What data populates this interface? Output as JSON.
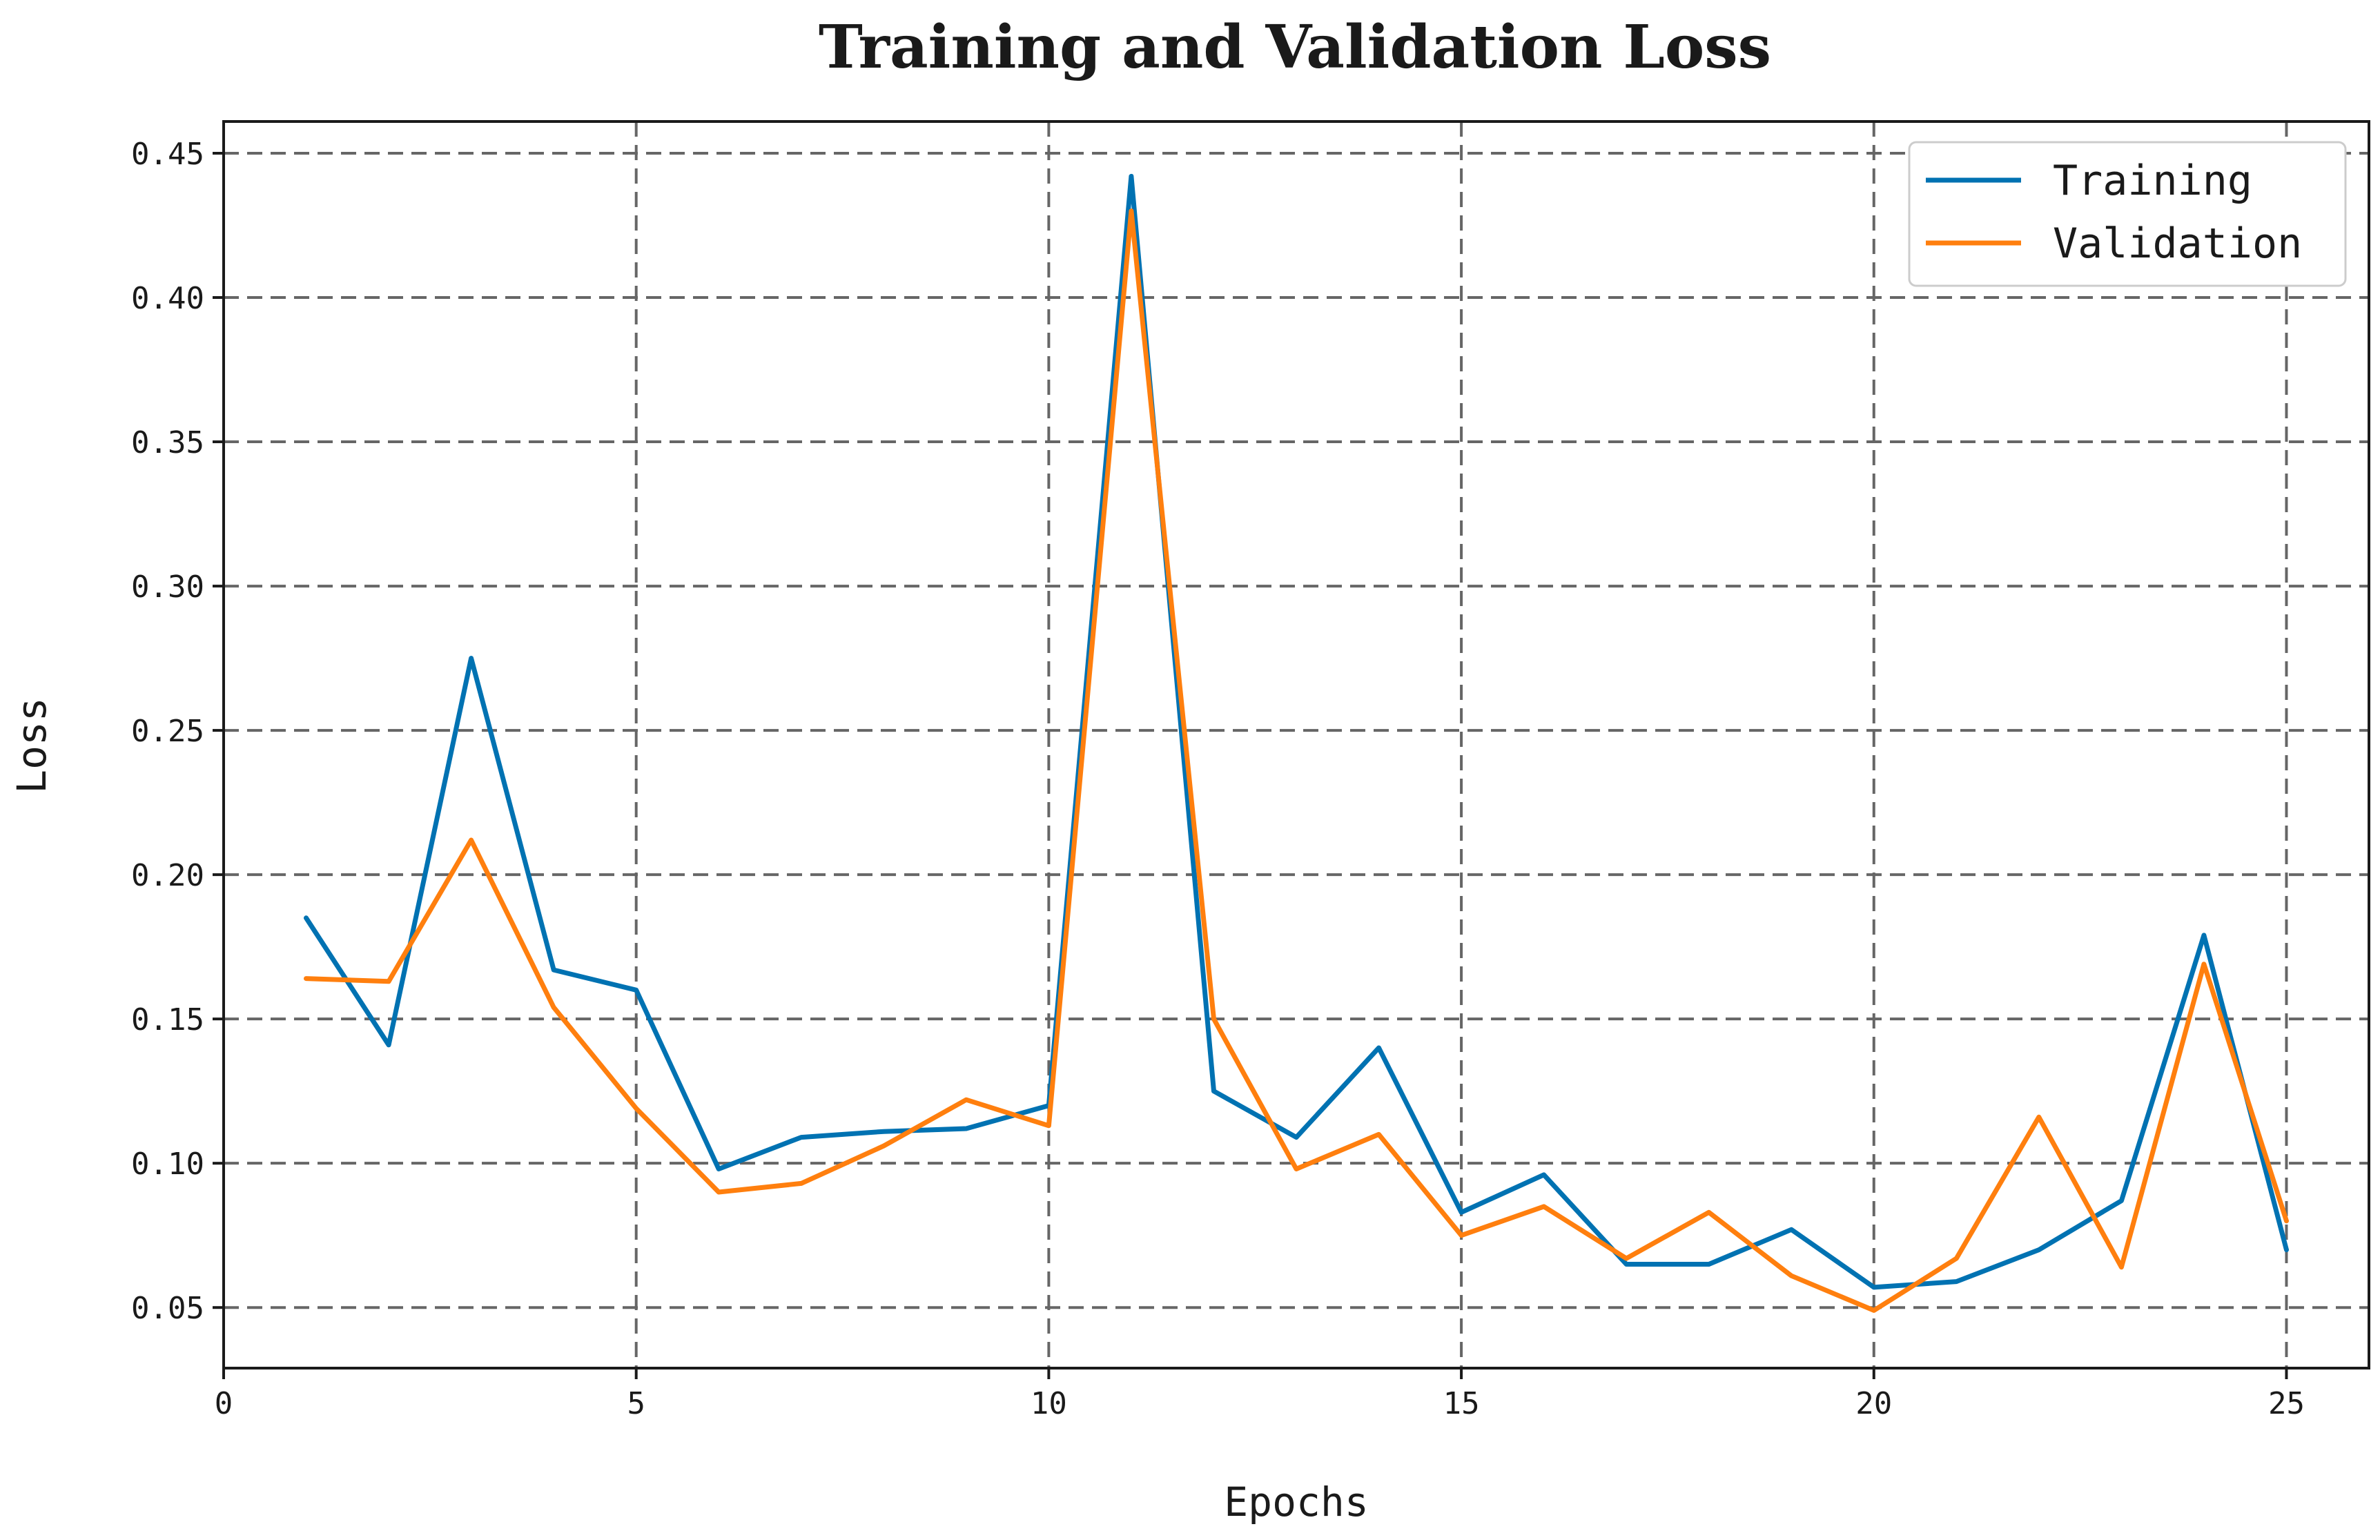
{
  "chart_data": {
    "type": "line",
    "title": "Training and Validation Loss",
    "xlabel": "Epochs",
    "ylabel": "Loss",
    "xlim": [
      0,
      26
    ],
    "ylim": [
      0.029,
      0.461
    ],
    "xticks": [
      0,
      5,
      10,
      15,
      20,
      25
    ],
    "xtick_labels": [
      "0",
      "5",
      "10",
      "15",
      "20",
      "25"
    ],
    "yticks": [
      0.05,
      0.1,
      0.15,
      0.2,
      0.25,
      0.3,
      0.35,
      0.4,
      0.45
    ],
    "ytick_labels": [
      "0.05",
      "0.10",
      "0.15",
      "0.20",
      "0.25",
      "0.30",
      "0.35",
      "0.40",
      "0.45"
    ],
    "grid": true,
    "legend_position": "top-right",
    "x": [
      1,
      2,
      3,
      4,
      5,
      6,
      7,
      8,
      9,
      10,
      11,
      12,
      13,
      14,
      15,
      16,
      17,
      18,
      19,
      20,
      21,
      22,
      23,
      24,
      25
    ],
    "series": [
      {
        "name": "Training",
        "color": "#0072b2",
        "values": [
          0.185,
          0.141,
          0.275,
          0.167,
          0.16,
          0.098,
          0.109,
          0.111,
          0.112,
          0.12,
          0.442,
          0.125,
          0.109,
          0.14,
          0.083,
          0.096,
          0.065,
          0.065,
          0.077,
          0.057,
          0.059,
          0.07,
          0.087,
          0.179,
          0.07
        ]
      },
      {
        "name": "Validation",
        "color": "#ff7f0e",
        "values": [
          0.164,
          0.163,
          0.212,
          0.154,
          0.119,
          0.09,
          0.093,
          0.106,
          0.122,
          0.113,
          0.43,
          0.15,
          0.098,
          0.11,
          0.075,
          0.085,
          0.067,
          0.083,
          0.061,
          0.049,
          0.067,
          0.116,
          0.064,
          0.169,
          0.08
        ]
      }
    ]
  }
}
